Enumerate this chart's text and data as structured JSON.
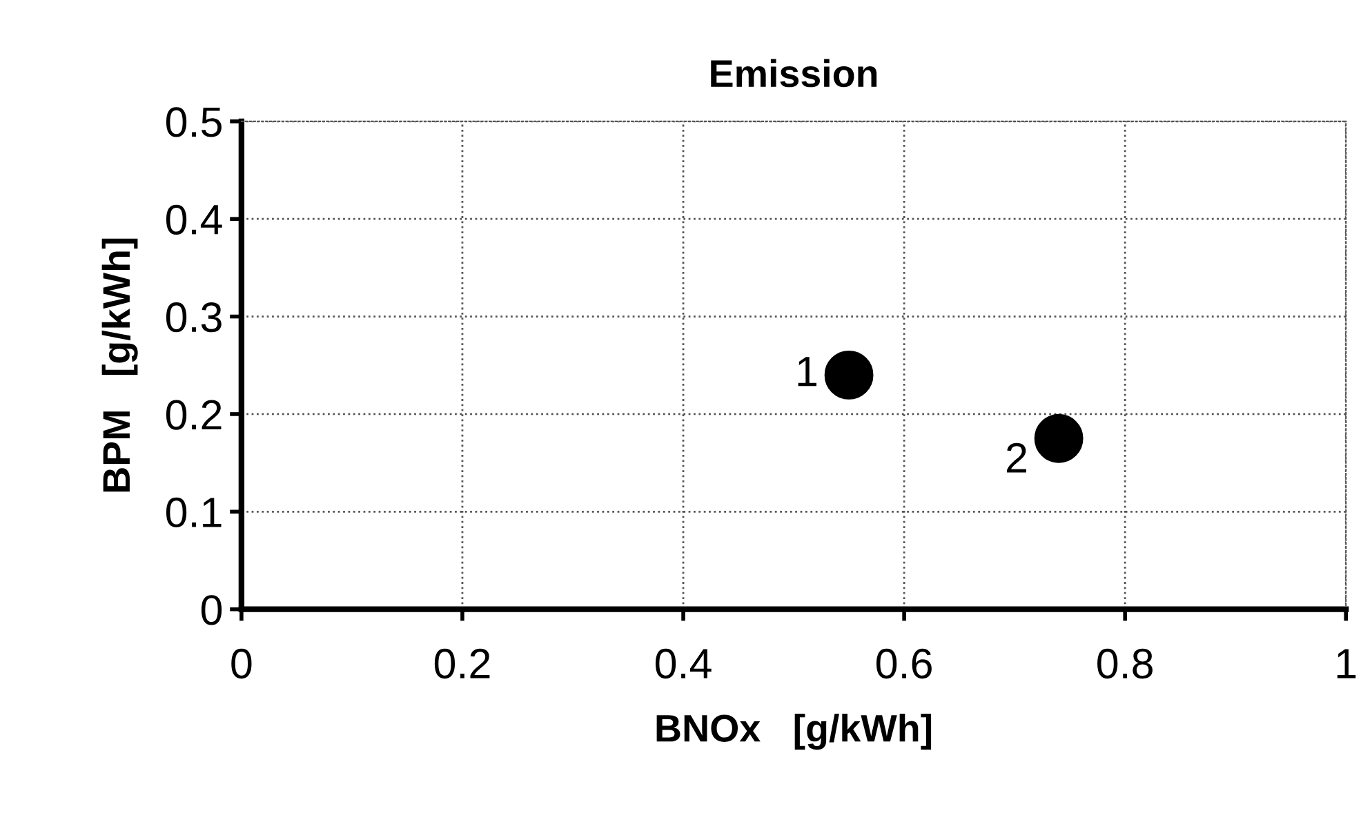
{
  "chart_data": {
    "type": "scatter",
    "title": "Emission",
    "xlabel": "BNOx   [g/kWh]",
    "ylabel": "BPM   [g/kWh]",
    "x": [
      0.55,
      0.74
    ],
    "series": [
      {
        "color": "#000000",
        "values": [
          0.24,
          0.175
        ]
      }
    ],
    "xlim": [
      0,
      1
    ],
    "ylim": [
      0,
      0.5
    ],
    "xticks": [
      0,
      0.2,
      0.4,
      0.6,
      0.8,
      1
    ],
    "yticks": [
      0,
      0.1,
      0.2,
      0.3,
      0.4,
      0.5
    ],
    "grid": true,
    "marker": "circle",
    "legend": false,
    "annotations": [
      {
        "text": "1",
        "x": 0.55,
        "y": 0.24
      },
      {
        "text": "2",
        "x": 0.74,
        "y": 0.175
      }
    ]
  }
}
